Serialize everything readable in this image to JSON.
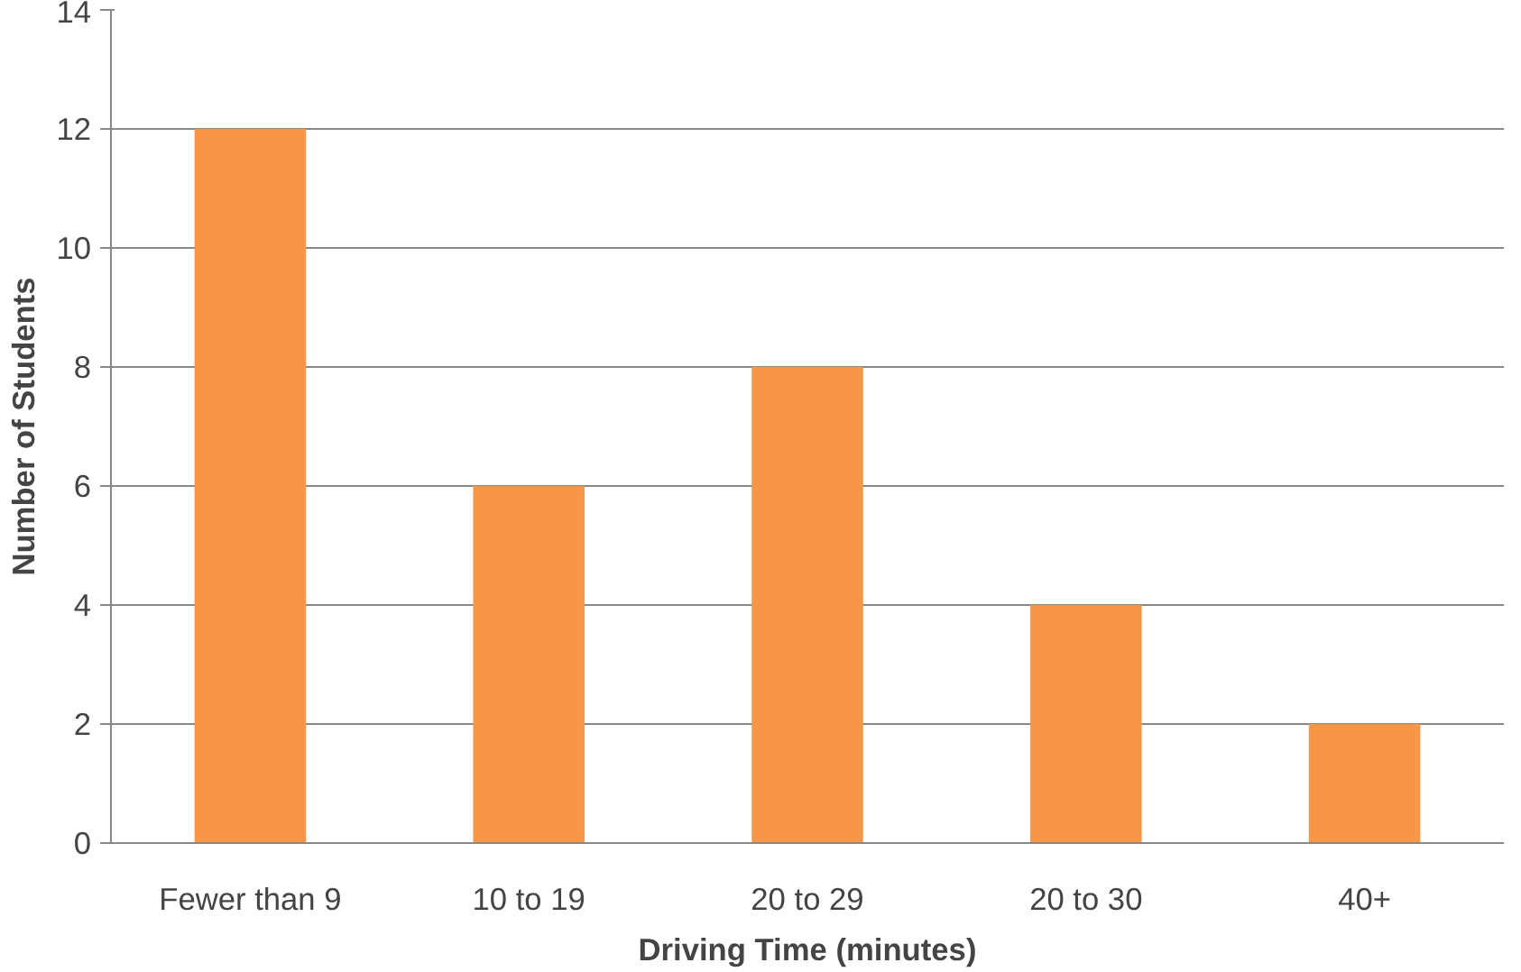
{
  "chart_data": {
    "type": "bar",
    "xlabel": "Driving Time (minutes)",
    "ylabel": "Number of Students",
    "categories": [
      "Fewer than 9",
      "10 to 19",
      "20 to 29",
      "20 to 30",
      "40+"
    ],
    "values": [
      12,
      6,
      8,
      4,
      2
    ],
    "color": "#f79646",
    "ylim": [
      0,
      14
    ],
    "yticks": [
      0,
      2,
      4,
      6,
      8,
      10,
      12,
      14
    ],
    "grid": "y"
  }
}
